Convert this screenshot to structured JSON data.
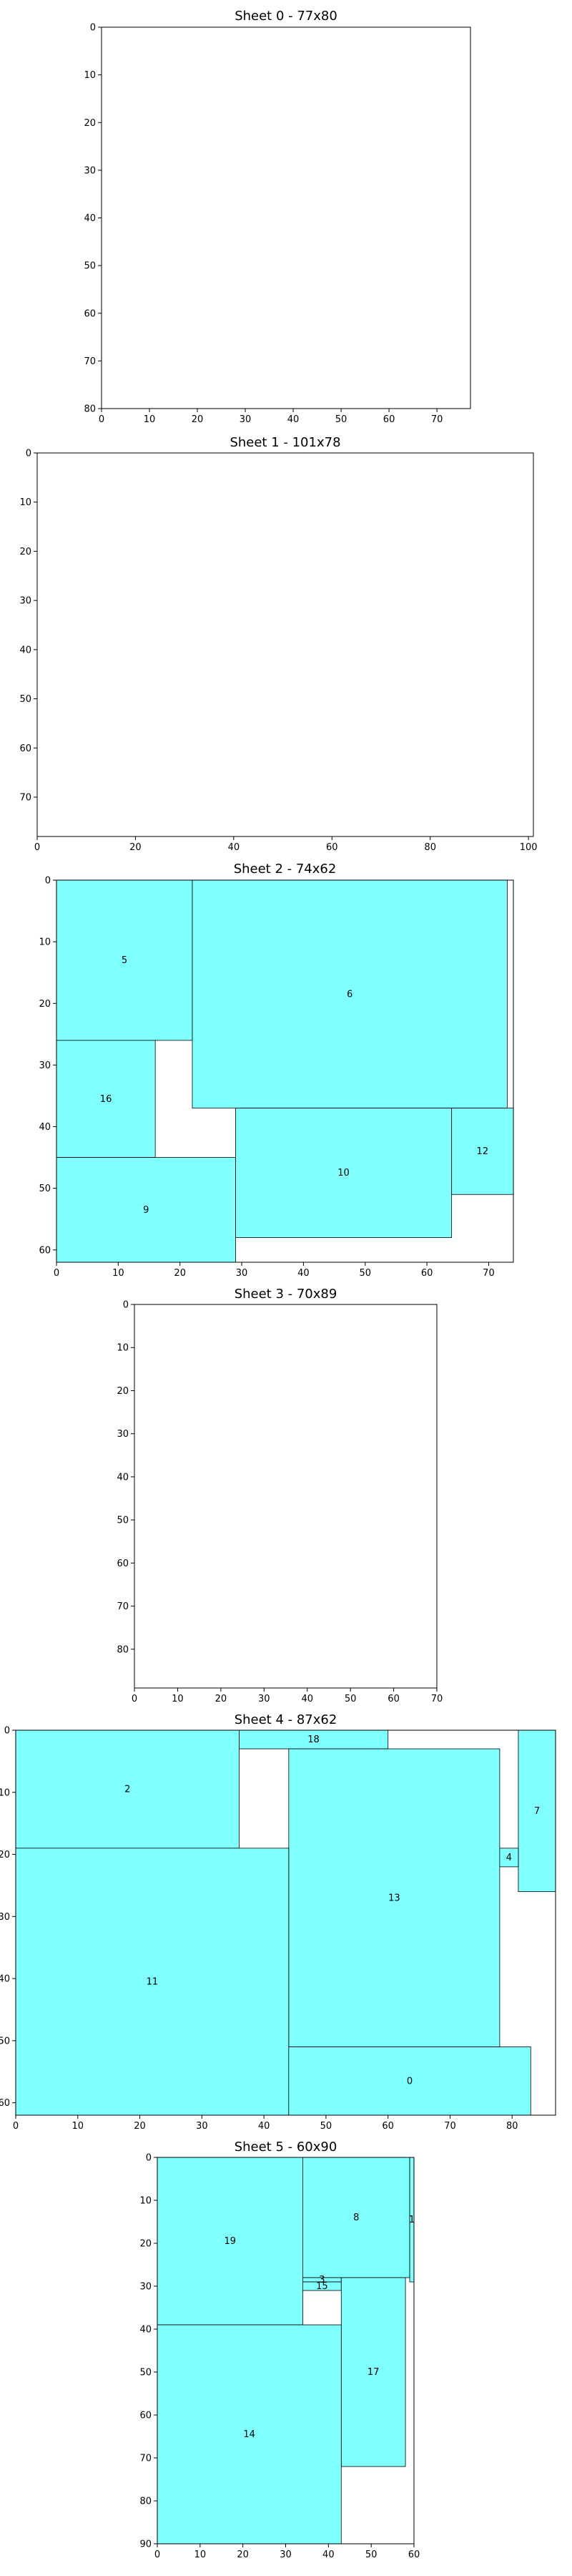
{
  "chart_data": [
    {
      "type": "rect-packing",
      "title": "Sheet 0 - 77x80",
      "sheet": {
        "width": 77,
        "height": 80
      },
      "xlim": [
        0,
        77
      ],
      "ylim": [
        0,
        80
      ],
      "y_inverted": true,
      "xticks": [
        0,
        10,
        20,
        30,
        40,
        50,
        60,
        70
      ],
      "yticks": [
        0,
        10,
        20,
        30,
        40,
        50,
        60,
        70,
        80
      ],
      "fill_color": "#80ffff",
      "parts": []
    },
    {
      "type": "rect-packing",
      "title": "Sheet 1 - 101x78",
      "sheet": {
        "width": 101,
        "height": 78
      },
      "xlim": [
        0,
        101
      ],
      "ylim": [
        0,
        78
      ],
      "y_inverted": true,
      "xticks": [
        0,
        20,
        40,
        60,
        80,
        100
      ],
      "yticks": [
        0,
        10,
        20,
        30,
        40,
        50,
        60,
        70
      ],
      "fill_color": "#80ffff",
      "parts": []
    },
    {
      "type": "rect-packing",
      "title": "Sheet 2 - 74x62",
      "sheet": {
        "width": 74,
        "height": 62
      },
      "xlim": [
        0,
        74
      ],
      "ylim": [
        0,
        62
      ],
      "y_inverted": true,
      "xticks": [
        0,
        10,
        20,
        30,
        40,
        50,
        60,
        70
      ],
      "yticks": [
        0,
        10,
        20,
        30,
        40,
        50,
        60
      ],
      "fill_color": "#80ffff",
      "parts": [
        {
          "id": "5",
          "x": 0,
          "y": 0,
          "w": 22,
          "h": 26
        },
        {
          "id": "6",
          "x": 22,
          "y": 0,
          "w": 51,
          "h": 37
        },
        {
          "id": "16",
          "x": 0,
          "y": 26,
          "w": 16,
          "h": 19
        },
        {
          "id": "10",
          "x": 29,
          "y": 37,
          "w": 35,
          "h": 21
        },
        {
          "id": "12",
          "x": 64,
          "y": 37,
          "w": 10,
          "h": 14
        },
        {
          "id": "9",
          "x": 0,
          "y": 45,
          "w": 29,
          "h": 17
        }
      ]
    },
    {
      "type": "rect-packing",
      "title": "Sheet 3 - 70x89",
      "sheet": {
        "width": 70,
        "height": 89
      },
      "xlim": [
        0,
        70
      ],
      "ylim": [
        0,
        89
      ],
      "y_inverted": true,
      "xticks": [
        0,
        10,
        20,
        30,
        40,
        50,
        60,
        70
      ],
      "yticks": [
        0,
        10,
        20,
        30,
        40,
        50,
        60,
        70,
        80
      ],
      "fill_color": "#80ffff",
      "parts": []
    },
    {
      "type": "rect-packing",
      "title": "Sheet 4 - 87x62",
      "sheet": {
        "width": 87,
        "height": 62
      },
      "xlim": [
        0,
        87
      ],
      "ylim": [
        0,
        62
      ],
      "y_inverted": true,
      "xticks": [
        0,
        10,
        20,
        30,
        40,
        50,
        60,
        70,
        80
      ],
      "yticks": [
        0,
        10,
        20,
        30,
        40,
        50,
        60
      ],
      "fill_color": "#80ffff",
      "parts": [
        {
          "id": "18",
          "x": 36,
          "y": 0,
          "w": 24,
          "h": 3
        },
        {
          "id": "2",
          "x": 0,
          "y": 0,
          "w": 36,
          "h": 19
        },
        {
          "id": "13",
          "x": 44,
          "y": 3,
          "w": 34,
          "h": 48
        },
        {
          "id": "7",
          "x": 81,
          "y": 0,
          "w": 6,
          "h": 26
        },
        {
          "id": "4",
          "x": 78,
          "y": 19,
          "w": 3,
          "h": 3
        },
        {
          "id": "11",
          "x": 0,
          "y": 19,
          "w": 44,
          "h": 43
        },
        {
          "id": "0",
          "x": 44,
          "y": 51,
          "w": 39,
          "h": 11
        }
      ]
    },
    {
      "type": "rect-packing",
      "title": "Sheet 5 - 60x90",
      "sheet": {
        "width": 60,
        "height": 90
      },
      "xlim": [
        0,
        60
      ],
      "ylim": [
        0,
        90
      ],
      "y_inverted": true,
      "xticks": [
        0,
        10,
        20,
        30,
        40,
        50,
        60
      ],
      "yticks": [
        0,
        10,
        20,
        30,
        40,
        50,
        60,
        70,
        80,
        90
      ],
      "fill_color": "#80ffff",
      "parts": [
        {
          "id": "19",
          "x": 0,
          "y": 0,
          "w": 34,
          "h": 39
        },
        {
          "id": "8",
          "x": 34,
          "y": 0,
          "w": 25,
          "h": 28
        },
        {
          "id": "1",
          "x": 59,
          "y": 0,
          "w": 1,
          "h": 29
        },
        {
          "id": "3",
          "x": 34,
          "y": 28,
          "w": 9,
          "h": 1
        },
        {
          "id": "15",
          "x": 34,
          "y": 29,
          "w": 9,
          "h": 2
        },
        {
          "id": "17",
          "x": 43,
          "y": 28,
          "w": 15,
          "h": 44
        },
        {
          "id": "14",
          "x": 0,
          "y": 39,
          "w": 43,
          "h": 51
        }
      ]
    }
  ]
}
